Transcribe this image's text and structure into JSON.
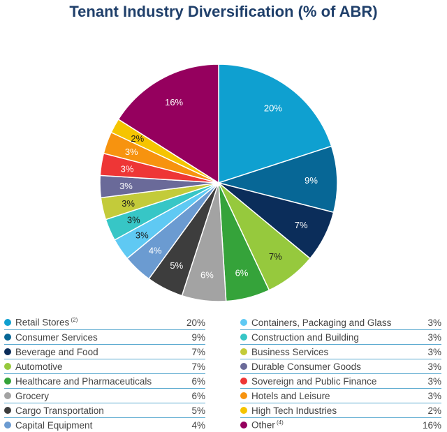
{
  "chart_data": {
    "type": "pie",
    "title": "Tenant Industry Diversification (% of ABR)",
    "slices": [
      {
        "name": "Retail Stores",
        "note": "(2)",
        "value": 20,
        "label": "20%",
        "value_text": "20%",
        "color": "#0fa0d0"
      },
      {
        "name": "Consumer Services",
        "value": 9,
        "label": "9%",
        "value_text": "9%",
        "color": "#076796"
      },
      {
        "name": "Beverage and Food",
        "value": 7,
        "label": "7%",
        "value_text": "7%",
        "color": "#0b2d5a"
      },
      {
        "name": "Automotive",
        "value": 7,
        "label": "7%",
        "value_text": "7%",
        "color": "#96c93d"
      },
      {
        "name": "Healthcare and Pharmaceuticals",
        "value": 6,
        "label": "6%",
        "value_text": "6%",
        "color": "#35a33a"
      },
      {
        "name": "Grocery",
        "value": 6,
        "label": "6%",
        "value_text": "6%",
        "color": "#a3a3a3"
      },
      {
        "name": "Cargo Transportation",
        "value": 5,
        "label": "5%",
        "value_text": "5%",
        "color": "#3d3d3d"
      },
      {
        "name": "Capital Equipment",
        "value": 4,
        "label": "4%",
        "value_text": "4%",
        "color": "#6b9bd1"
      },
      {
        "name": "Containers, Packaging and Glass",
        "value": 3,
        "label": "3%",
        "value_text": "3%",
        "color": "#5fc9f3"
      },
      {
        "name": "Construction and Building",
        "value": 3,
        "label": "3%",
        "value_text": "3%",
        "color": "#37c6c6"
      },
      {
        "name": "Business Services",
        "value": 3,
        "label": "3%",
        "value_text": "3%",
        "color": "#c3cb3a"
      },
      {
        "name": "Durable Consumer Goods",
        "value": 3,
        "label": "3%",
        "value_text": "3%",
        "color": "#6a6a99"
      },
      {
        "name": "Sovereign and Public Finance",
        "value": 3,
        "label": "3%",
        "value_text": "3%",
        "color": "#ee3636"
      },
      {
        "name": "Hotels and Leisure",
        "value": 3,
        "label": "3%",
        "value_text": "3%",
        "color": "#f7930f"
      },
      {
        "name": "High Tech Industries",
        "value": 2,
        "label": "2%",
        "value_text": "2%",
        "color": "#f5c400"
      },
      {
        "name": "Other",
        "note": "(4)",
        "value": 16,
        "label": "16%",
        "value_text": "16%",
        "color": "#95005e"
      }
    ],
    "legend_placement": "bottom"
  }
}
